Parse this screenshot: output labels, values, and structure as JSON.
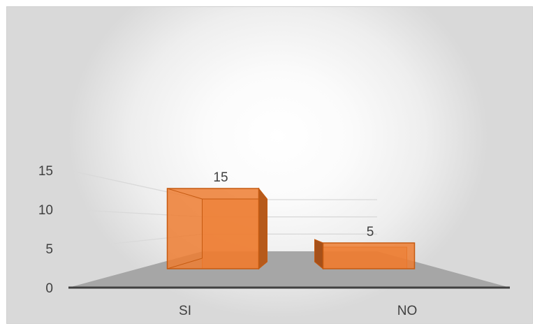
{
  "chart_data": {
    "type": "bar",
    "style": "3d-column",
    "categories": [
      "SI",
      "NO"
    ],
    "values": [
      15,
      5
    ],
    "data_labels": [
      "15",
      "5"
    ],
    "y_ticks": [
      "0",
      "5",
      "10",
      "15"
    ],
    "ylim": [
      0,
      15
    ],
    "title": "",
    "xlabel": "",
    "ylabel": "",
    "grid": true,
    "legend": "none",
    "bar_color": "#ed7d31",
    "bar_edge_color": "#c55a11",
    "floor_color": "#a6a6a6"
  }
}
